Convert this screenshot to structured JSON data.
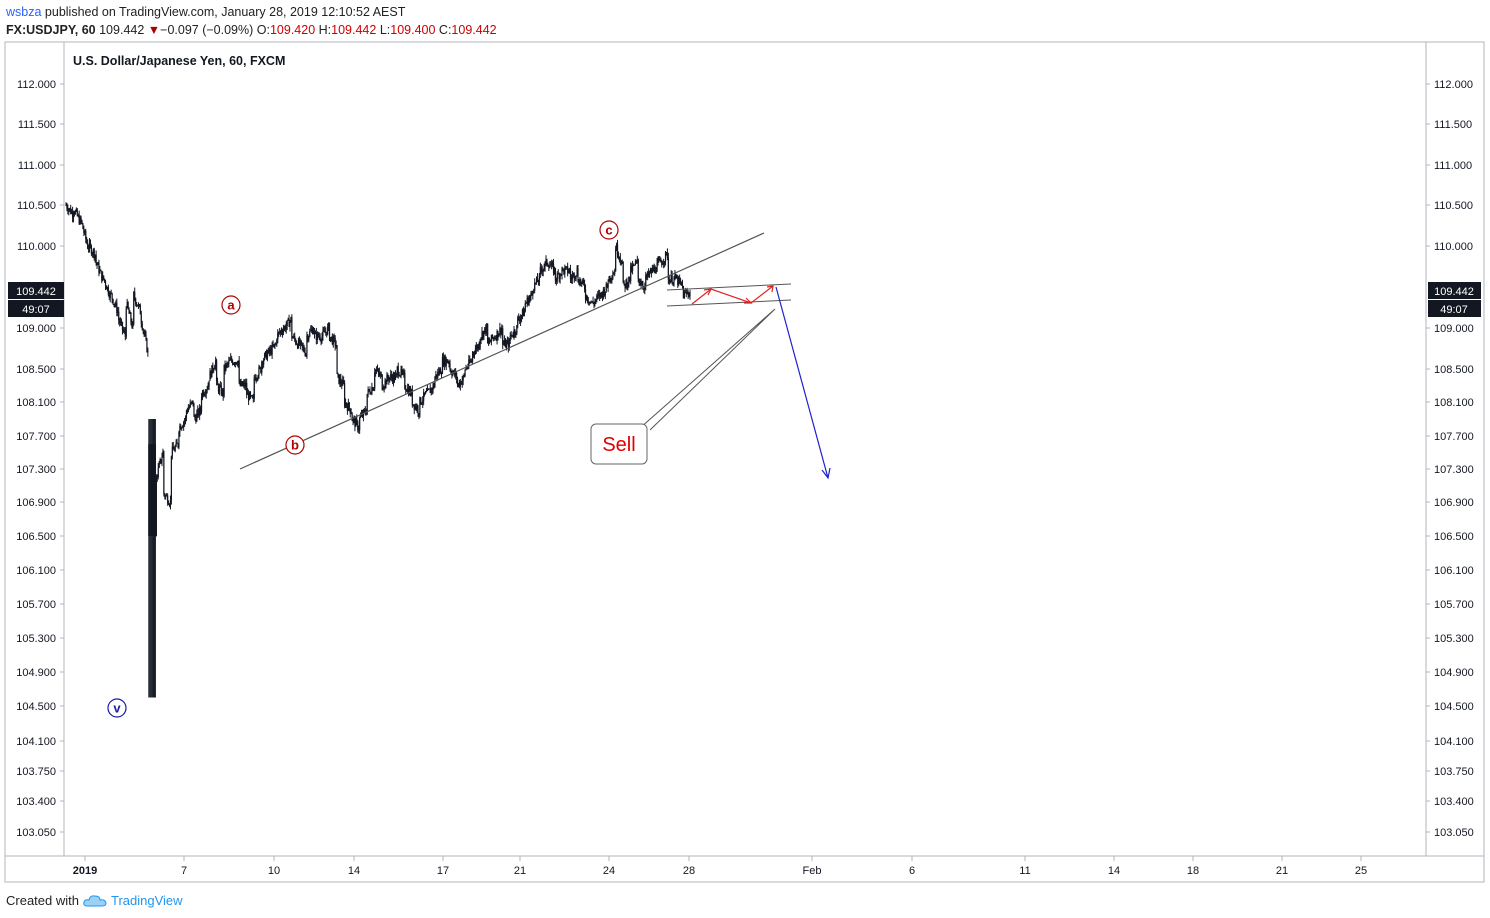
{
  "header": {
    "publisher": "wsbza",
    "published_text": "published on TradingView.com, January 28, 2019 12:10:52 AEST",
    "symbol": "FX:USDJPY, 60",
    "last": "109.442",
    "change_arrow": "▼",
    "change": "−0.097 (−0.09%)",
    "o_label": "O:",
    "o_value": "109.420",
    "h_label": "H:",
    "h_value": "109.442",
    "l_label": "L:",
    "l_value": "109.400",
    "c_label": "C:",
    "c_value": "109.442"
  },
  "footer": {
    "created_with": "Created with",
    "brand": "TradingView",
    "logo_icon": "tradingview-cloud-icon"
  },
  "chart_data": {
    "type": "candlestick",
    "title": "U.S. Dollar/Japanese Yen, 60, FXCM",
    "y_ticks": [
      "112.000",
      "111.500",
      "111.000",
      "110.500",
      "110.000",
      "109.000",
      "108.500",
      "108.100",
      "107.700",
      "107.300",
      "106.900",
      "106.500",
      "106.100",
      "105.700",
      "105.300",
      "104.900",
      "104.500",
      "104.100",
      "103.750",
      "103.400",
      "103.050"
    ],
    "x_ticks": [
      "2019",
      "7",
      "10",
      "14",
      "17",
      "21",
      "24",
      "28",
      "Feb",
      "6",
      "11",
      "14",
      "18",
      "21",
      "25"
    ],
    "last_price_label": "109.442",
    "countdown_label": "49:07",
    "wave_labels": [
      {
        "text": "v",
        "x": "Jan 3",
        "y": 104.5,
        "color": "#1a1aa8"
      },
      {
        "text": "a",
        "x": "Jan 8",
        "y": 109.3,
        "color": "#b00000"
      },
      {
        "text": "b",
        "x": "Jan 10",
        "y": 107.6,
        "color": "#b00000"
      },
      {
        "text": "c",
        "x": "Jan 24",
        "y": 110.2,
        "color": "#b00000"
      }
    ],
    "annotation": {
      "text": "Sell",
      "color": "#e00000"
    },
    "colors": {
      "candles": "#131722",
      "trendline": "#555555",
      "projection_up": "#e02020",
      "projection_down": "#2020d0",
      "last_price_bg": "#131722"
    },
    "ohlc_path": [
      [
        110.5,
        110.4
      ],
      [
        110.45,
        110.3
      ],
      [
        110.3,
        110.0
      ],
      [
        110.0,
        109.9
      ],
      [
        109.8,
        109.6
      ],
      [
        109.6,
        109.4
      ],
      [
        109.4,
        109.2
      ],
      [
        109.1,
        108.9
      ],
      [
        109.3,
        109.0
      ],
      [
        109.4,
        109.2
      ],
      [
        109.1,
        108.7
      ],
      [
        104.6,
        104.6
      ],
      [
        107.2,
        107.5
      ],
      [
        107.0,
        106.9
      ],
      [
        107.5,
        107.6
      ],
      [
        107.8,
        107.9
      ],
      [
        108.0,
        108.1
      ],
      [
        107.9,
        108.0
      ],
      [
        108.2,
        108.3
      ],
      [
        108.4,
        108.6
      ],
      [
        108.3,
        108.2
      ],
      [
        108.5,
        108.6
      ],
      [
        108.6,
        108.6
      ],
      [
        108.3,
        108.3
      ],
      [
        108.2,
        108.1
      ],
      [
        108.4,
        108.5
      ],
      [
        108.6,
        108.7
      ],
      [
        108.7,
        108.8
      ],
      [
        108.9,
        109.0
      ],
      [
        109.0,
        109.1
      ],
      [
        108.9,
        108.8
      ],
      [
        108.8,
        108.7
      ],
      [
        108.9,
        109.0
      ],
      [
        108.9,
        108.9
      ],
      [
        108.9,
        109.0
      ],
      [
        108.9,
        108.8
      ],
      [
        108.4,
        108.3
      ],
      [
        108.1,
        108.0
      ],
      [
        107.9,
        107.8
      ],
      [
        107.9,
        108.0
      ],
      [
        108.2,
        108.3
      ],
      [
        108.5,
        108.4
      ],
      [
        108.3,
        108.4
      ],
      [
        108.4,
        108.4
      ],
      [
        108.5,
        108.4
      ],
      [
        108.3,
        108.2
      ],
      [
        108.1,
        108.0
      ],
      [
        108.1,
        108.2
      ],
      [
        108.2,
        108.3
      ],
      [
        108.4,
        108.5
      ],
      [
        108.6,
        108.6
      ],
      [
        108.5,
        108.4
      ],
      [
        108.3,
        108.4
      ],
      [
        108.5,
        108.6
      ],
      [
        108.7,
        108.8
      ],
      [
        108.9,
        109.0
      ],
      [
        108.8,
        108.9
      ],
      [
        108.9,
        109.0
      ],
      [
        108.8,
        108.8
      ],
      [
        108.9,
        109.0
      ],
      [
        109.1,
        109.2
      ],
      [
        109.3,
        109.4
      ],
      [
        109.5,
        109.6
      ],
      [
        109.7,
        109.8
      ],
      [
        109.8,
        109.7
      ],
      [
        109.6,
        109.7
      ],
      [
        109.7,
        109.7
      ],
      [
        109.6,
        109.7
      ],
      [
        109.6,
        109.5
      ],
      [
        109.4,
        109.3
      ],
      [
        109.3,
        109.4
      ],
      [
        109.4,
        109.5
      ],
      [
        109.6,
        109.7
      ],
      [
        110.0,
        109.8
      ],
      [
        109.5,
        109.6
      ],
      [
        109.7,
        109.8
      ],
      [
        109.6,
        109.5
      ],
      [
        109.6,
        109.7
      ],
      [
        109.7,
        109.8
      ],
      [
        109.8,
        109.9
      ],
      [
        109.6,
        109.6
      ],
      [
        109.6,
        109.5
      ],
      [
        109.4,
        109.44
      ]
    ]
  }
}
